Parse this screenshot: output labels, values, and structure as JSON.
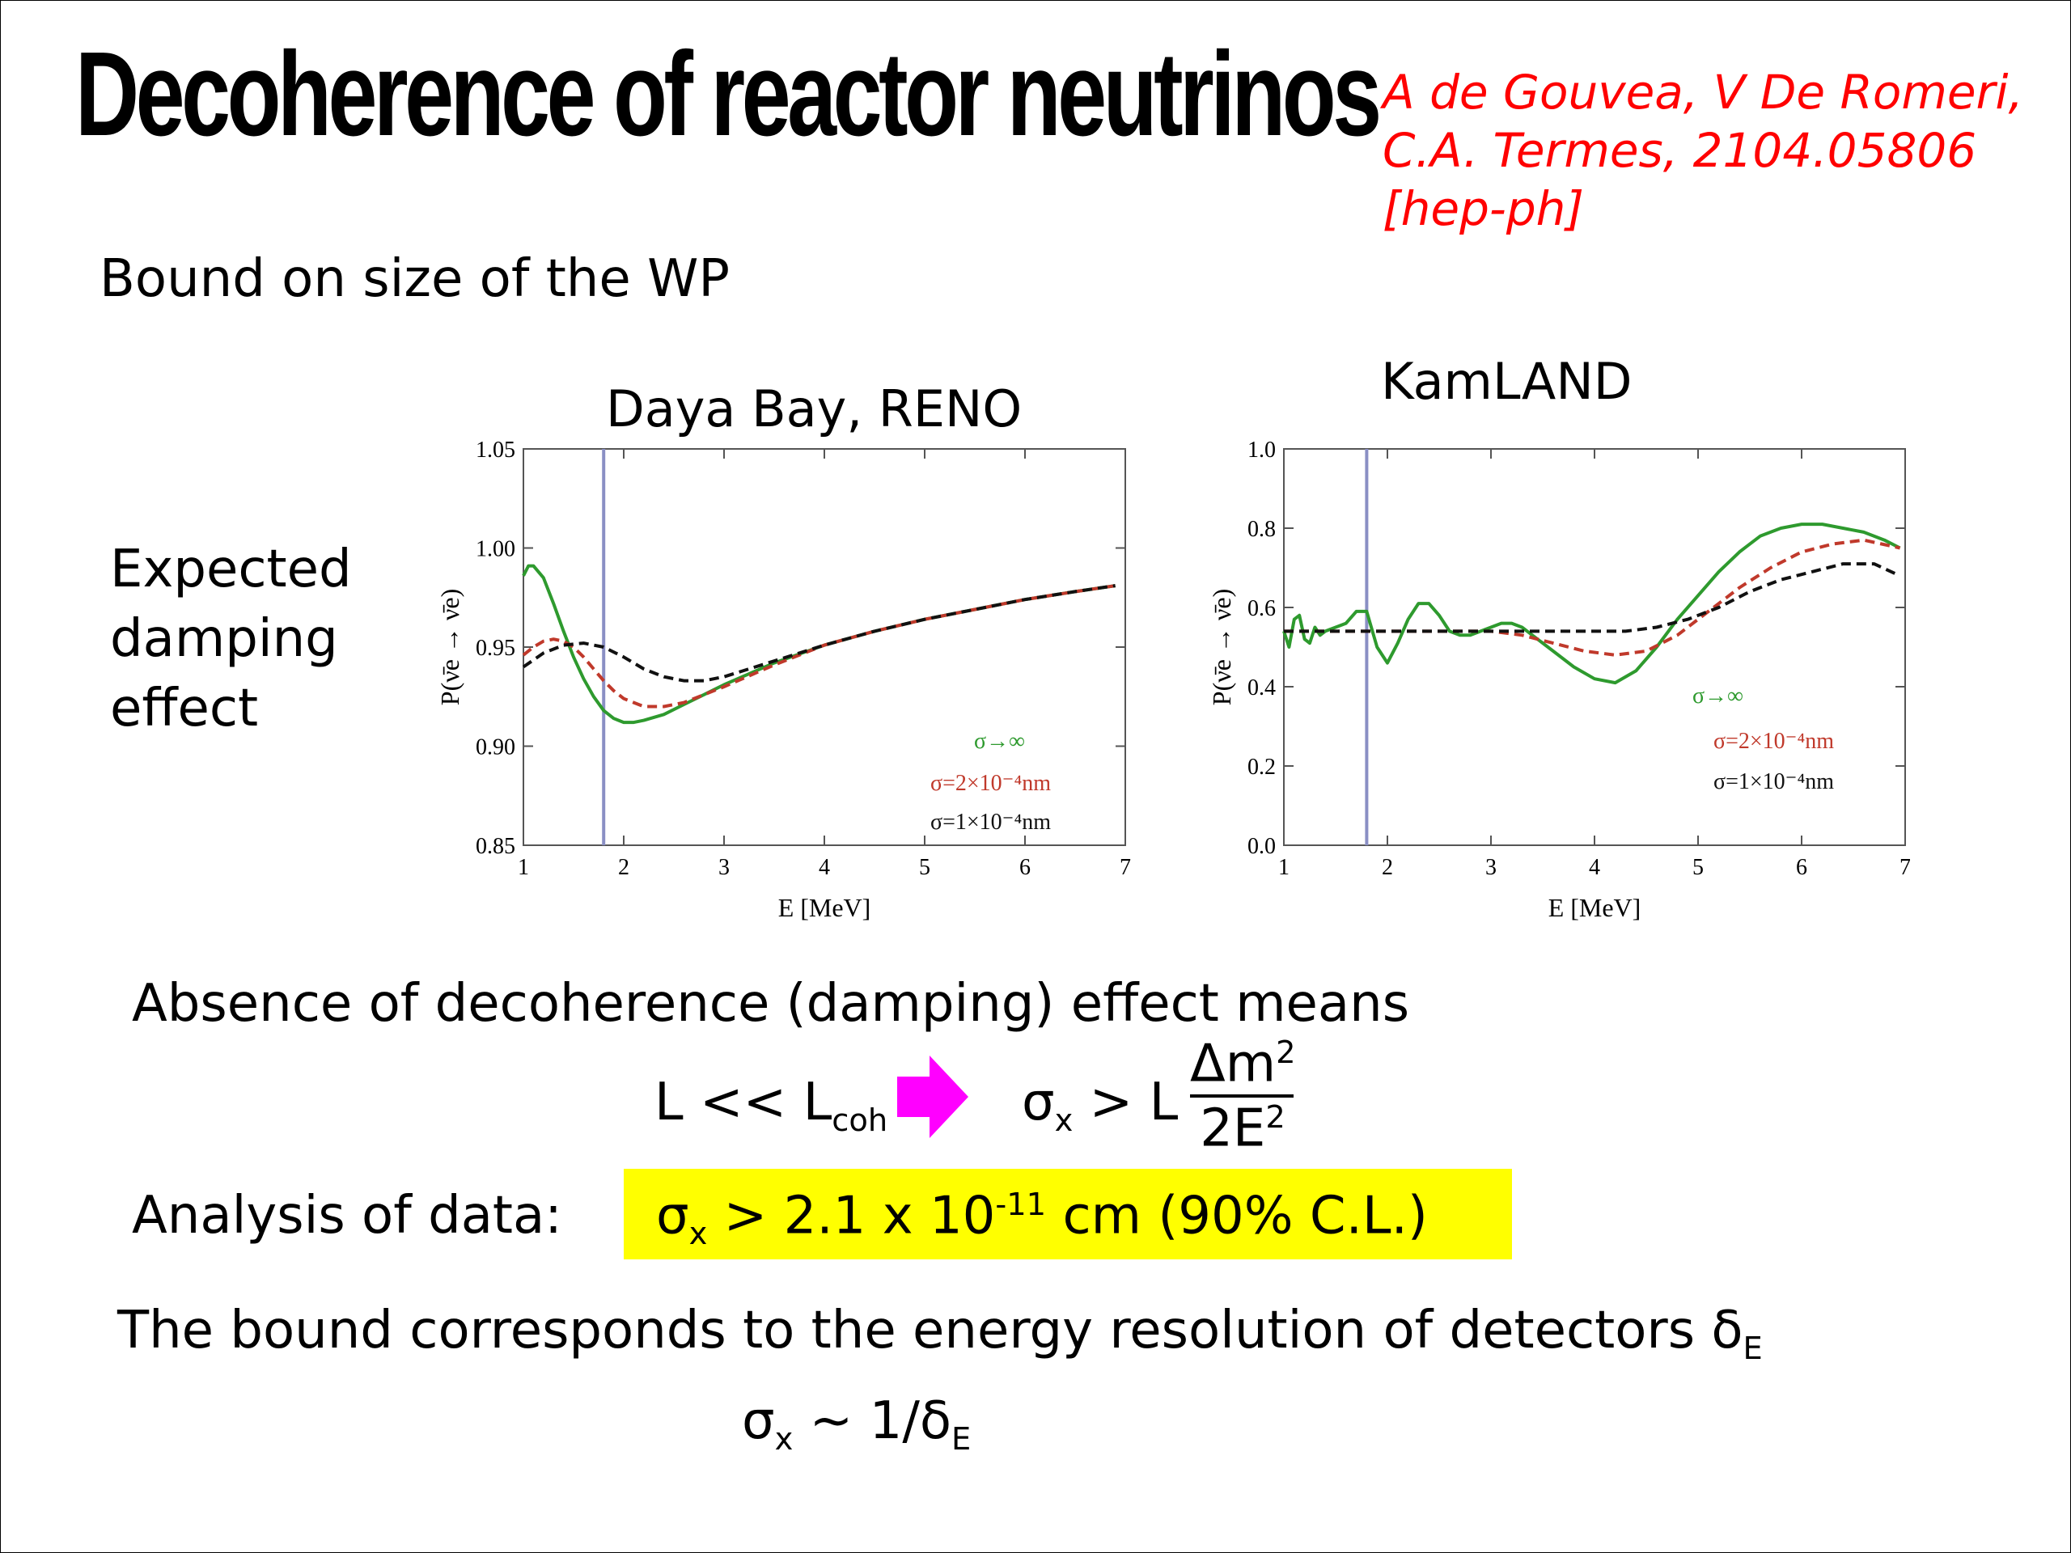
{
  "title": "Decoherence of reactor neutrinos",
  "citation": [
    "A de Gouvea, V De Romeri,",
    "C.A. Termes, 2104.05806",
    "[hep-ph]"
  ],
  "subtitle": "Bound on size of the WP",
  "side_label": [
    "Expected",
    "damping",
    "effect"
  ],
  "absence_text": "Absence of decoherence (damping) effect means",
  "formula1": {
    "lhs": "L << L",
    "lhs_sub": "coh",
    "sigma": "σ",
    "sigma_sub": "x",
    "rel": " > L ",
    "num": "Δm",
    "num_sup": "2",
    "den": "2E",
    "den_sup": "2"
  },
  "analysis_label": "Analysis of data:",
  "bound": {
    "sigma": "σ",
    "sub": "x",
    "text1": " > 2.1 x 10",
    "sup": "-11",
    "text2": " cm  (90% C.L.)"
  },
  "resolution_text": "The bound corresponds to the energy resolution of detectors δ",
  "resolution_sub": "E",
  "final_relation": {
    "sigma": "σ",
    "sub": "x",
    "text": " ~  1/δ",
    "sub2": "E"
  },
  "colors": {
    "green": "#2e9a2e",
    "red": "#c0392b",
    "black": "#111111",
    "vline": "#8a8fc4",
    "arrow": "#ff00ff",
    "highlight": "#ffff00",
    "citation": "#ff0000"
  },
  "chart_data": [
    {
      "type": "line",
      "title": "Daya Bay, RENO",
      "xlabel": "E [MeV]",
      "ylabel": "P(ν̄e → ν̄e)",
      "xlim": [
        1,
        7
      ],
      "ylim": [
        0.85,
        1.05
      ],
      "xticks": [
        "1",
        "2",
        "3",
        "4",
        "5",
        "6",
        "7"
      ],
      "yticks": [
        "0.85",
        "0.90",
        "0.95",
        "1.00",
        "1.05"
      ],
      "vline_x": 1.8,
      "series": [
        {
          "name": "σ→∞",
          "color": "#2e9a2e",
          "dash": "solid",
          "x": [
            1.0,
            1.05,
            1.1,
            1.2,
            1.3,
            1.4,
            1.5,
            1.6,
            1.7,
            1.8,
            1.9,
            2.0,
            2.1,
            2.2,
            2.4,
            2.6,
            2.8,
            3.0,
            3.5,
            4.0,
            4.5,
            5.0,
            5.5,
            6.0,
            6.5,
            6.9
          ],
          "y": [
            0.986,
            0.991,
            0.991,
            0.985,
            0.972,
            0.958,
            0.945,
            0.934,
            0.925,
            0.918,
            0.914,
            0.912,
            0.912,
            0.913,
            0.916,
            0.921,
            0.926,
            0.931,
            0.942,
            0.951,
            0.958,
            0.964,
            0.969,
            0.974,
            0.978,
            0.981
          ]
        },
        {
          "name": "σ=2×10⁻⁴nm",
          "color": "#c0392b",
          "dash": "dashed",
          "x": [
            1.0,
            1.1,
            1.2,
            1.3,
            1.4,
            1.5,
            1.6,
            1.7,
            1.8,
            1.9,
            2.0,
            2.2,
            2.4,
            2.6,
            2.8,
            3.0,
            3.5,
            4.0,
            4.5,
            5.0,
            5.5,
            6.0,
            6.5,
            6.9
          ],
          "y": [
            0.946,
            0.95,
            0.953,
            0.954,
            0.953,
            0.95,
            0.945,
            0.939,
            0.933,
            0.928,
            0.924,
            0.92,
            0.92,
            0.922,
            0.926,
            0.93,
            0.941,
            0.951,
            0.958,
            0.964,
            0.969,
            0.974,
            0.978,
            0.981
          ]
        },
        {
          "name": "σ=1×10⁻⁴nm",
          "color": "#111111",
          "dash": "dashed",
          "x": [
            1.0,
            1.2,
            1.4,
            1.6,
            1.8,
            2.0,
            2.2,
            2.4,
            2.6,
            2.8,
            3.0,
            3.5,
            4.0,
            4.5,
            5.0,
            5.5,
            6.0,
            6.5,
            6.9
          ],
          "y": [
            0.94,
            0.947,
            0.951,
            0.952,
            0.95,
            0.945,
            0.939,
            0.935,
            0.933,
            0.933,
            0.935,
            0.943,
            0.951,
            0.958,
            0.964,
            0.969,
            0.974,
            0.978,
            0.981
          ]
        }
      ]
    },
    {
      "type": "line",
      "title": "KamLAND",
      "xlabel": "E [MeV]",
      "ylabel": "P(ν̄e → ν̄e)",
      "xlim": [
        1,
        7
      ],
      "ylim": [
        0.0,
        1.0
      ],
      "xticks": [
        "1",
        "2",
        "3",
        "4",
        "5",
        "6",
        "7"
      ],
      "yticks": [
        "0.0",
        "0.2",
        "0.4",
        "0.6",
        "0.8",
        "1.0"
      ],
      "vline_x": 1.8,
      "series": [
        {
          "name": "σ→∞",
          "color": "#2e9a2e",
          "dash": "solid",
          "x": [
            1.0,
            1.05,
            1.1,
            1.15,
            1.2,
            1.25,
            1.3,
            1.35,
            1.4,
            1.5,
            1.6,
            1.7,
            1.8,
            1.9,
            2.0,
            2.1,
            2.2,
            2.3,
            2.4,
            2.5,
            2.6,
            2.7,
            2.8,
            2.9,
            3.0,
            3.1,
            3.2,
            3.3,
            3.4,
            3.6,
            3.8,
            4.0,
            4.2,
            4.4,
            4.6,
            4.8,
            5.0,
            5.2,
            5.4,
            5.6,
            5.8,
            6.0,
            6.2,
            6.4,
            6.6,
            6.8,
            6.95
          ],
          "y": [
            0.54,
            0.5,
            0.57,
            0.58,
            0.52,
            0.51,
            0.55,
            0.53,
            0.54,
            0.55,
            0.56,
            0.59,
            0.59,
            0.5,
            0.46,
            0.51,
            0.57,
            0.61,
            0.61,
            0.58,
            0.54,
            0.53,
            0.53,
            0.54,
            0.55,
            0.56,
            0.56,
            0.55,
            0.53,
            0.49,
            0.45,
            0.42,
            0.41,
            0.44,
            0.5,
            0.57,
            0.63,
            0.69,
            0.74,
            0.78,
            0.8,
            0.81,
            0.81,
            0.8,
            0.79,
            0.77,
            0.75
          ]
        },
        {
          "name": "σ=2×10⁻⁴nm",
          "color": "#c0392b",
          "dash": "dashed",
          "x": [
            1.0,
            1.5,
            2.0,
            2.5,
            3.0,
            3.3,
            3.6,
            3.9,
            4.2,
            4.5,
            4.8,
            5.1,
            5.4,
            5.7,
            6.0,
            6.3,
            6.6,
            6.95
          ],
          "y": [
            0.54,
            0.54,
            0.54,
            0.54,
            0.54,
            0.53,
            0.51,
            0.49,
            0.48,
            0.49,
            0.53,
            0.59,
            0.65,
            0.7,
            0.74,
            0.76,
            0.77,
            0.75
          ]
        },
        {
          "name": "σ=1×10⁻⁴nm",
          "color": "#111111",
          "dash": "dashed",
          "x": [
            1.0,
            1.5,
            2.0,
            2.5,
            3.0,
            3.5,
            4.0,
            4.3,
            4.6,
            4.9,
            5.2,
            5.5,
            5.8,
            6.1,
            6.4,
            6.7,
            6.95
          ],
          "y": [
            0.54,
            0.54,
            0.54,
            0.54,
            0.54,
            0.54,
            0.54,
            0.54,
            0.55,
            0.57,
            0.6,
            0.64,
            0.67,
            0.69,
            0.71,
            0.71,
            0.68
          ]
        }
      ]
    }
  ]
}
